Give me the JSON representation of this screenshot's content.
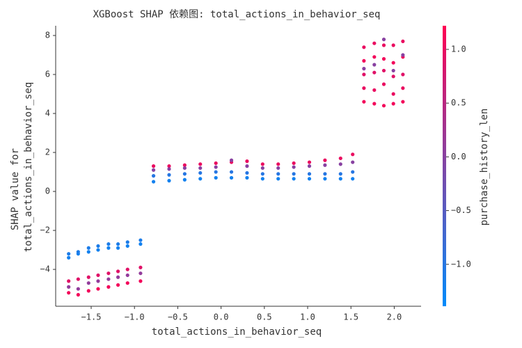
{
  "chart_data": {
    "type": "scatter",
    "title": "XGBoost SHAP 依赖图: total_actions_in_behavior_seq",
    "x_label": "total_actions_in_behavior_seq",
    "y_label": [
      "SHAP value for",
      "total_actions_in_behavior_seq"
    ],
    "colorbar_label": "purchase_history_len",
    "colormap": [
      "#008bfb",
      "#ff0052"
    ],
    "xlim": [
      -1.91,
      2.31
    ],
    "ylim": [
      -5.89,
      8.5
    ],
    "clim": [
      -1.39,
      1.22
    ],
    "xticks": [
      {
        "value": -1.5,
        "label": "−1.5"
      },
      {
        "value": -1.0,
        "label": "−1.0"
      },
      {
        "value": -0.5,
        "label": "−0.5"
      },
      {
        "value": 0,
        "label": "0.0"
      },
      {
        "value": 0.5,
        "label": "0.5"
      },
      {
        "value": 1,
        "label": "1.0"
      },
      {
        "value": 1.5,
        "label": "1.5"
      },
      {
        "value": 2,
        "label": "2.0"
      }
    ],
    "yticks": [
      {
        "value": -4,
        "label": "−4"
      },
      {
        "value": -2,
        "label": "−2"
      },
      0,
      2,
      4,
      6,
      8
    ],
    "cticks": [
      {
        "value": -1,
        "label": "−1.0"
      },
      {
        "value": -0.5,
        "label": "−0.5"
      },
      {
        "value": 0,
        "label": "0.0"
      },
      {
        "value": 0.5,
        "label": "0.5"
      },
      {
        "value": 1,
        "label": "1.0"
      }
    ],
    "x": [
      -1.76,
      -1.65,
      -1.53,
      -1.42,
      -1.3,
      -1.19,
      -1.08,
      -0.93,
      -1.76,
      -1.65,
      -1.53,
      -1.42,
      -1.3,
      -1.19,
      -1.08,
      -0.93,
      -1.76,
      -1.65,
      -1.53,
      -1.42,
      -1.3,
      -1.19,
      -1.08,
      -0.93,
      -1.76,
      -1.65,
      -1.53,
      -1.42,
      -1.3,
      -1.19,
      -1.08,
      -0.93,
      -1.76,
      -1.65,
      -1.53,
      -1.42,
      -1.3,
      -1.19,
      -1.08,
      -0.93,
      -0.78,
      -0.6,
      -0.42,
      -0.24,
      -0.06,
      0.12,
      0.3,
      0.48,
      0.66,
      0.84,
      1.02,
      1.2,
      1.38,
      1.52,
      -0.78,
      -0.6,
      -0.42,
      -0.24,
      -0.06,
      0.12,
      0.3,
      0.48,
      0.66,
      0.84,
      1.02,
      1.2,
      1.38,
      1.52,
      -0.78,
      -0.6,
      -0.42,
      -0.24,
      -0.06,
      0.12,
      0.3,
      0.48,
      0.66,
      0.84,
      1.02,
      1.2,
      1.38,
      1.52,
      -0.78,
      -0.6,
      -0.42,
      -0.24,
      -0.06,
      0.12,
      0.3,
      0.48,
      0.66,
      0.84,
      1.02,
      1.2,
      1.38,
      1.52,
      1.65,
      1.77,
      1.88,
      1.99,
      2.1,
      1.65,
      1.77,
      1.88,
      1.99,
      2.1,
      1.65,
      1.77,
      1.88,
      1.99,
      2.1,
      1.65,
      1.77,
      1.88,
      1.99,
      2.1,
      1.65,
      1.77,
      1.88,
      1.99,
      2.1,
      1.65,
      1.77,
      1.88,
      1.99,
      2.1
    ],
    "values": [
      -3.4,
      -3.2,
      -3.1,
      -3.0,
      -2.9,
      -2.9,
      -2.8,
      -2.7,
      -3.2,
      -3.1,
      -2.9,
      -2.8,
      -2.7,
      -2.7,
      -2.6,
      -2.5,
      -5.2,
      -5.3,
      -5.1,
      -5.0,
      -4.9,
      -4.8,
      -4.7,
      -4.6,
      -4.6,
      -4.5,
      -4.4,
      -4.3,
      -4.2,
      -4.1,
      -4.0,
      -3.9,
      -4.9,
      -5.0,
      -4.7,
      -4.6,
      -4.5,
      -4.4,
      -4.3,
      -4.2,
      0.5,
      0.55,
      0.6,
      0.65,
      0.7,
      0.7,
      0.7,
      0.65,
      0.65,
      0.65,
      0.65,
      0.65,
      0.65,
      0.65,
      0.8,
      0.85,
      0.9,
      0.95,
      1.0,
      1.0,
      0.95,
      0.9,
      0.9,
      0.9,
      0.9,
      0.9,
      0.9,
      1.0,
      1.3,
      1.3,
      1.35,
      1.4,
      1.45,
      1.5,
      1.55,
      1.4,
      1.4,
      1.45,
      1.5,
      1.6,
      1.7,
      1.9,
      1.1,
      1.15,
      1.2,
      1.2,
      1.25,
      1.6,
      1.3,
      1.2,
      1.2,
      1.25,
      1.3,
      1.35,
      1.4,
      1.5,
      4.6,
      4.5,
      4.4,
      4.5,
      4.6,
      5.3,
      5.2,
      5.5,
      5.0,
      5.3,
      6.0,
      6.1,
      6.2,
      5.9,
      6.0,
      6.7,
      6.9,
      6.8,
      6.6,
      6.9,
      7.4,
      7.6,
      7.5,
      7.5,
      7.7,
      6.3,
      6.5,
      7.8,
      6.2,
      7.0
    ],
    "color_values": [
      -1.2,
      -1.2,
      -1.2,
      -1.2,
      -1.2,
      -1.2,
      -1.2,
      -1.2,
      -1.1,
      -1.1,
      -1.1,
      -1.1,
      -1.1,
      -1.1,
      -1.1,
      -1.1,
      1.1,
      1.1,
      1.1,
      1.1,
      1.1,
      1.1,
      1.1,
      1.1,
      0.9,
      0.9,
      0.9,
      0.9,
      0.9,
      0.9,
      0.9,
      0.9,
      0.1,
      0.1,
      0.1,
      0.1,
      0.1,
      0.1,
      0.1,
      0.1,
      -1.2,
      -1.2,
      -1.2,
      -1.2,
      -1.2,
      -1.2,
      -1.2,
      -1.2,
      -1.2,
      -1.2,
      -1.2,
      -1.2,
      -1.2,
      -1.2,
      -1.0,
      -1.0,
      -1.0,
      -1.0,
      -1.0,
      -1.0,
      -1.0,
      -1.0,
      -1.0,
      -1.0,
      -1.0,
      -1.0,
      -1.0,
      -1.0,
      1.0,
      1.0,
      1.0,
      1.0,
      1.0,
      1.0,
      1.0,
      1.0,
      1.0,
      1.0,
      1.0,
      1.0,
      1.0,
      1.0,
      0.0,
      0.0,
      0.0,
      0.0,
      0.0,
      0.0,
      0.0,
      0.0,
      0.0,
      0.0,
      0.0,
      0.0,
      0.0,
      0.0,
      1.1,
      1.1,
      1.1,
      1.1,
      1.1,
      1.0,
      1.0,
      1.0,
      1.0,
      1.0,
      0.9,
      0.9,
      0.9,
      0.9,
      0.9,
      1.1,
      1.1,
      1.1,
      1.1,
      1.1,
      1.0,
      1.0,
      1.0,
      1.0,
      1.0,
      0.0,
      0.0,
      0.0,
      0.0,
      0.0
    ]
  }
}
